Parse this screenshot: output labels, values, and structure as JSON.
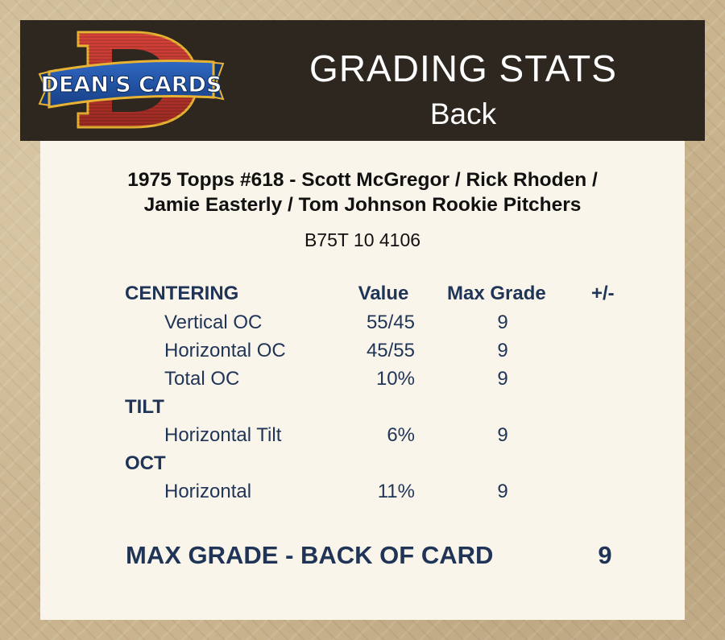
{
  "header": {
    "logo_text": "DEAN'S CARDS",
    "title": "GRADING STATS",
    "subtitle": "Back"
  },
  "card": {
    "title_line1": "1975 Topps #618  -  Scott McGregor / Rick Rhoden /",
    "title_line2": "Jamie Easterly / Tom Johnson Rookie Pitchers",
    "id": "B75T 10 4106"
  },
  "table": {
    "headers": {
      "section": "CENTERING",
      "value": "Value",
      "max_grade": "Max Grade",
      "plus_minus": "+/-"
    },
    "centering": [
      {
        "label": "Vertical OC",
        "value": "55/45",
        "max_grade": "9"
      },
      {
        "label": "Horizontal OC",
        "value": "45/55",
        "max_grade": "9"
      },
      {
        "label": "Total OC",
        "value": "10%",
        "max_grade": "9"
      }
    ],
    "tilt_title": "TILT",
    "tilt": [
      {
        "label": "Horizontal Tilt",
        "value": "6%",
        "max_grade": "9"
      }
    ],
    "oct_title": "OCT",
    "oct": [
      {
        "label": "Horizontal",
        "value": "11%",
        "max_grade": "9"
      }
    ]
  },
  "summary": {
    "label": "MAX GRADE - BACK OF CARD",
    "value": "9"
  },
  "colors": {
    "header_bg": "#2e271f",
    "panel_bg": "#faf5eb",
    "text_navy": "#1f3457",
    "logo_red": "#c0392b",
    "logo_blue": "#1f4e9a"
  }
}
